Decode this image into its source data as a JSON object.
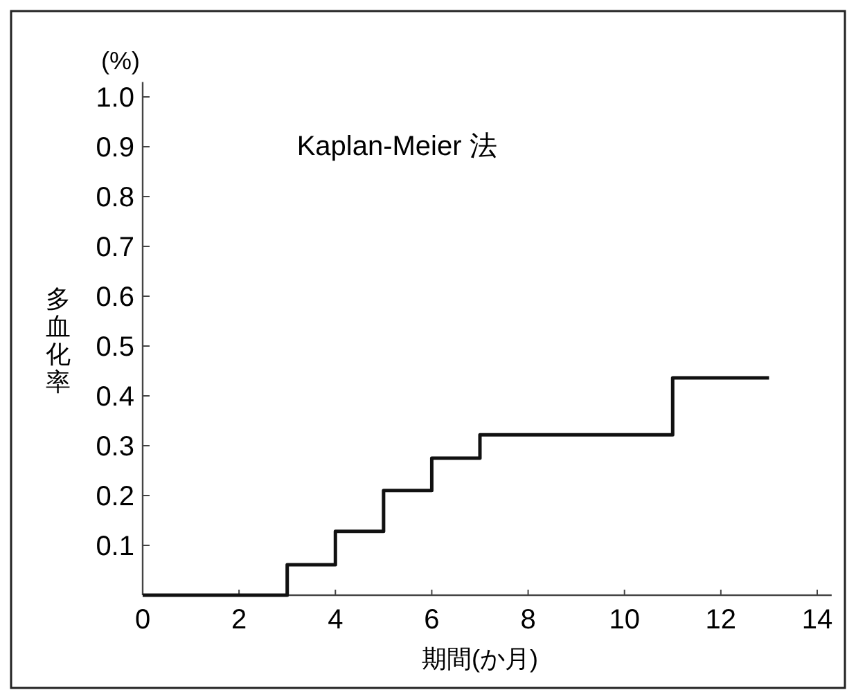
{
  "chart_data": {
    "type": "step",
    "title": "Kaplan-Meier 法",
    "xlabel": "期間(か月)",
    "ylabel": "多血化率",
    "annotations": [
      "(%)"
    ],
    "series": [
      {
        "color": "#111111",
        "x": [
          0,
          3,
          4,
          5,
          6,
          7,
          11,
          13
        ],
        "values": [
          0,
          0.061,
          0.128,
          0.21,
          0.275,
          0.322,
          0.436,
          0.436
        ]
      }
    ],
    "xlim": [
      0,
      14.3
    ],
    "ylim": [
      0,
      1.03
    ],
    "xticks": [
      0,
      2,
      4,
      6,
      8,
      10,
      12,
      14
    ],
    "yticks": [
      0.1,
      0.2,
      0.3,
      0.4,
      0.5,
      0.6,
      0.7,
      0.8,
      0.9,
      {
        "value": 1,
        "label": "1.0"
      }
    ],
    "grid": false
  }
}
